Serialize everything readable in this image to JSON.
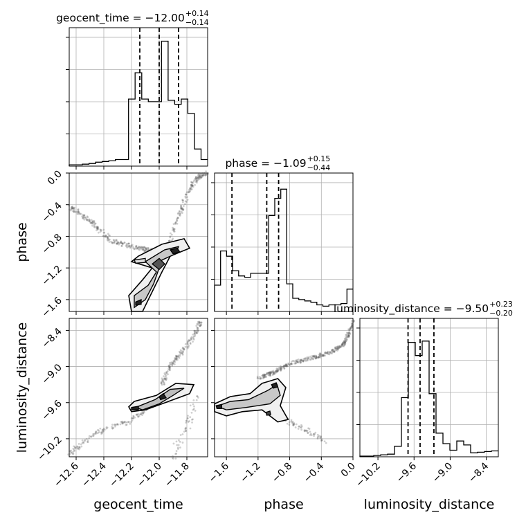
{
  "chart_data": {
    "type": "corner",
    "parameters": [
      "geocent_time",
      "phase",
      "luminosity_distance"
    ],
    "titles": [
      {
        "text": "geocent_time = −12.00",
        "plus": "+0.14",
        "minus": "−0.14"
      },
      {
        "text": "phase = −1.09",
        "plus": "+0.15",
        "minus": "−0.44"
      },
      {
        "text": "luminosity_distance = −9.50",
        "plus": "+0.23",
        "minus": "−0.20"
      }
    ],
    "ranges": [
      [
        -12.65,
        -11.65
      ],
      [
        -1.75,
        0.0
      ],
      [
        -10.5,
        -8.2
      ]
    ],
    "ticks": [
      {
        "values": [
          -12.6,
          -12.4,
          -12.2,
          -12.0,
          -11.8
        ],
        "labels": [
          "−12.6",
          "−12.4",
          "−12.2",
          "−12.0",
          "−11.8"
        ]
      },
      {
        "values": [
          -1.6,
          -1.2,
          -0.8,
          -0.4,
          0.0
        ],
        "labels": [
          "−1.6",
          "−1.2",
          "−0.8",
          "−0.4",
          "0.0"
        ]
      },
      {
        "values": [
          -10.2,
          -9.6,
          -9.0,
          -8.4
        ],
        "labels": [
          "−10.2",
          "−9.6",
          "−9.0",
          "−8.4"
        ]
      }
    ],
    "quantiles": [
      [
        -12.14,
        -12.0,
        -11.86
      ],
      [
        -1.53,
        -1.09,
        -0.94
      ],
      [
        -9.7,
        -9.5,
        -9.27
      ]
    ],
    "histograms": [
      {
        "edges_from": -12.65,
        "edges_to": -11.65,
        "values": [
          0.01,
          0.01,
          0.015,
          0.02,
          0.03,
          0.035,
          0.04,
          0.05,
          0.05,
          0.51,
          0.71,
          0.51,
          0.49,
          0.49,
          0.95,
          0.5,
          0.47,
          0.51,
          0.4,
          0.13,
          0.05
        ]
      },
      {
        "edges_from": -1.75,
        "edges_to": 0.0,
        "values": [
          0.2,
          0.46,
          0.42,
          0.31,
          0.27,
          0.26,
          0.29,
          0.29,
          0.29,
          0.73,
          0.86,
          0.93,
          0.21,
          0.1,
          0.09,
          0.08,
          0.07,
          0.05,
          0.04,
          0.05,
          0.05,
          0.06,
          0.17
        ]
      },
      {
        "edges_from": -10.5,
        "edges_to": -8.2,
        "values": [
          0.005,
          0.005,
          0.01,
          0.015,
          0.02,
          0.08,
          0.45,
          0.87,
          0.77,
          0.88,
          0.48,
          0.18,
          0.1,
          0.05,
          0.12,
          0.09,
          0.03,
          0.035,
          0.04,
          0.045
        ]
      }
    ],
    "grid": true
  }
}
